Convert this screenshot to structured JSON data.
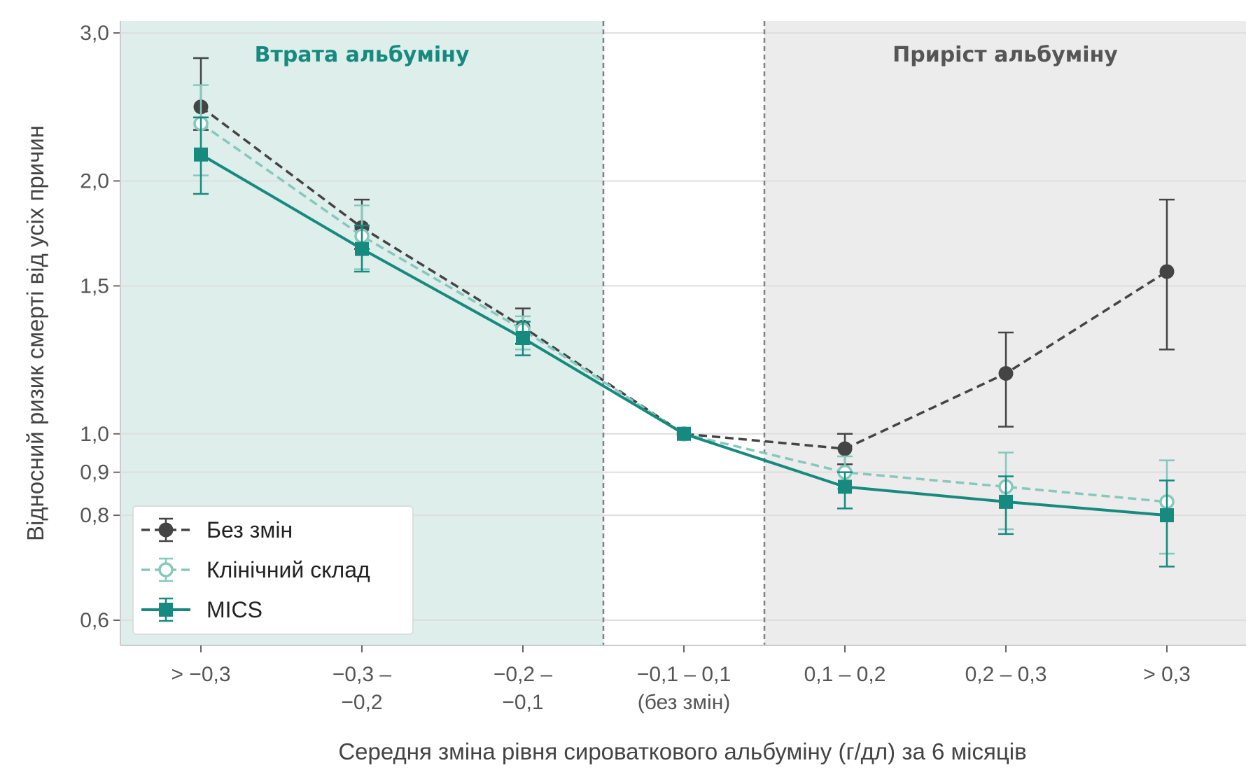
{
  "chart_data": {
    "type": "line",
    "title": "",
    "xlabel": "Середня зміна рівня сироваткового альбуміну (г/дл) за 6 місяців",
    "ylabel": "Відносний ризик смерті від усіх причин",
    "y_scale": "log",
    "ylim": [
      0.56,
      3.1
    ],
    "y_ticks": [
      0.6,
      0.8,
      0.9,
      1.0,
      1.5,
      2.0,
      3.0
    ],
    "y_tick_labels": [
      "0,6",
      "0,8",
      "0,9",
      "1,0",
      "1,5",
      "2,0",
      "3,0"
    ],
    "grid": "horizontal",
    "categories": [
      [
        "> −0,3"
      ],
      [
        "−0,3 –",
        "−0,2"
      ],
      [
        "−0,2 –",
        "−0,1"
      ],
      [
        "−0,1 – 0,1",
        "(без змін)"
      ],
      [
        "0,1 – 0,2"
      ],
      [
        "0,2 – 0,3"
      ],
      [
        "> 0,3"
      ]
    ],
    "regions": [
      {
        "label": "Втрата альбуміну",
        "from_category": 0,
        "to_category": 2,
        "color": "#ddeeeb",
        "label_color": "#168a7e"
      },
      {
        "label": "Приріст альбуміну",
        "from_category": 4,
        "to_category": 6,
        "color": "#ececec",
        "label_color": "#555555"
      }
    ],
    "legend_position": "bottom-left",
    "series": [
      {
        "name": "Без змін",
        "color": "#444444",
        "line": "dashed",
        "marker": "circle-filled",
        "values": [
          2.45,
          1.76,
          1.34,
          1.0,
          0.96,
          1.18,
          1.56
        ],
        "ci_low": [
          2.3,
          1.66,
          1.28,
          1.0,
          0.92,
          1.02,
          1.26
        ],
        "ci_high": [
          2.8,
          1.9,
          1.41,
          1.0,
          1.0,
          1.32,
          1.9
        ]
      },
      {
        "name": "Клінічний склад",
        "color": "#86c8bc",
        "line": "dashed",
        "marker": "circle-open",
        "values": [
          2.34,
          1.72,
          1.33,
          1.0,
          0.9,
          0.865,
          0.83
        ],
        "ci_low": [
          2.03,
          1.57,
          1.26,
          1.0,
          0.86,
          0.77,
          0.72
        ],
        "ci_high": [
          2.6,
          1.87,
          1.38,
          1.0,
          0.94,
          0.95,
          0.93
        ]
      },
      {
        "name": "MICS",
        "color": "#168a7e",
        "line": "solid",
        "marker": "square-filled",
        "values": [
          2.15,
          1.66,
          1.3,
          1.0,
          0.865,
          0.83,
          0.8
        ],
        "ci_low": [
          1.93,
          1.56,
          1.24,
          1.0,
          0.815,
          0.76,
          0.695
        ],
        "ci_high": [
          2.38,
          1.77,
          1.36,
          1.0,
          0.9,
          0.89,
          0.88
        ]
      }
    ]
  }
}
